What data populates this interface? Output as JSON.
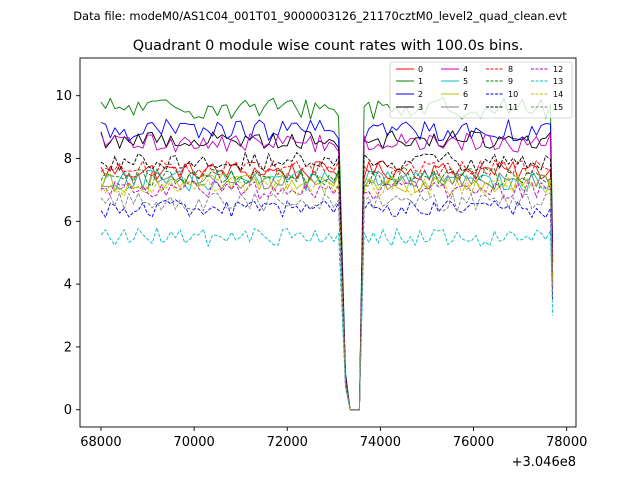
{
  "figure": {
    "suptitle": "Data file: modeM0/AS1C04_001T01_9000003126_21170cztM0_level2_quad_clean.evt"
  },
  "chart_data": {
    "type": "line",
    "title": "Quadrant 0 module wise count rates with 100.0s bins.",
    "xlabel": "",
    "ylabel": "",
    "x_offset_label": "+3.046e8",
    "x_offset": 304600000,
    "xlim": [
      67550,
      78200
    ],
    "ylim": [
      -0.55,
      11.2
    ],
    "xticks": [
      68000,
      70000,
      72000,
      74000,
      76000,
      78000
    ],
    "xtick_labels": [
      "68000",
      "70000",
      "72000",
      "74000",
      "76000",
      "78000"
    ],
    "yticks": [
      0,
      2,
      4,
      6,
      8,
      10
    ],
    "ytick_labels": [
      "0",
      "2",
      "4",
      "6",
      "8",
      "10"
    ],
    "grid": false,
    "legend_position": "top-right",
    "x_start": 68000,
    "bin_width": 100,
    "shape": {
      "gap_start": 73150,
      "gap_end": 73650,
      "end_x": 77700,
      "drop_points": [
        [
          73250,
          1
        ],
        [
          73350,
          0
        ],
        [
          73550,
          0
        ]
      ],
      "end_drop_fraction": 0.55
    },
    "series": [
      {
        "name": "0",
        "color": "#ff0000",
        "dash": "solid",
        "mean": 7.6,
        "noise": 0.3,
        "end_value": 4.2
      },
      {
        "name": "1",
        "color": "#008000",
        "dash": "solid",
        "mean": 9.6,
        "noise": 0.35,
        "end_value": 5.3
      },
      {
        "name": "2",
        "color": "#0000ff",
        "dash": "solid",
        "mean": 8.9,
        "noise": 0.35,
        "end_value": 4.9
      },
      {
        "name": "3",
        "color": "#000000",
        "dash": "solid",
        "mean": 8.6,
        "noise": 0.3,
        "end_value": 4.7
      },
      {
        "name": "4",
        "color": "#bf00bf",
        "dash": "solid",
        "mean": 8.5,
        "noise": 0.3,
        "end_value": 4.7
      },
      {
        "name": "5",
        "color": "#00bfbf",
        "dash": "solid",
        "mean": 7.3,
        "noise": 0.35,
        "end_value": 4.0
      },
      {
        "name": "6",
        "color": "#bfbf00",
        "dash": "solid",
        "mean": 7.2,
        "noise": 0.3,
        "end_value": 4.0
      },
      {
        "name": "7",
        "color": "#808080",
        "dash": "solid",
        "mean": 7.3,
        "noise": 0.3,
        "end_value": 4.0
      },
      {
        "name": "8",
        "color": "#ff0000",
        "dash": "dashed",
        "mean": 7.7,
        "noise": 0.25,
        "end_value": 4.2
      },
      {
        "name": "9",
        "color": "#008000",
        "dash": "dashed",
        "mean": 7.4,
        "noise": 0.3,
        "end_value": 4.1
      },
      {
        "name": "10",
        "color": "#0000ff",
        "dash": "dashed",
        "mean": 6.4,
        "noise": 0.3,
        "end_value": 3.5
      },
      {
        "name": "11",
        "color": "#000000",
        "dash": "dashed",
        "mean": 7.9,
        "noise": 0.3,
        "end_value": 4.3
      },
      {
        "name": "12",
        "color": "#bf00bf",
        "dash": "dashed",
        "mean": 7.0,
        "noise": 0.3,
        "end_value": 3.9
      },
      {
        "name": "13",
        "color": "#00bfbf",
        "dash": "dashed",
        "mean": 5.5,
        "noise": 0.3,
        "end_value": 3.0
      },
      {
        "name": "14",
        "color": "#bfbf00",
        "dash": "dashed",
        "mean": 7.1,
        "noise": 0.3,
        "end_value": 3.9
      },
      {
        "name": "15",
        "color": "#808080",
        "dash": "dashed",
        "mean": 6.6,
        "noise": 0.3,
        "end_value": 3.6
      }
    ]
  }
}
